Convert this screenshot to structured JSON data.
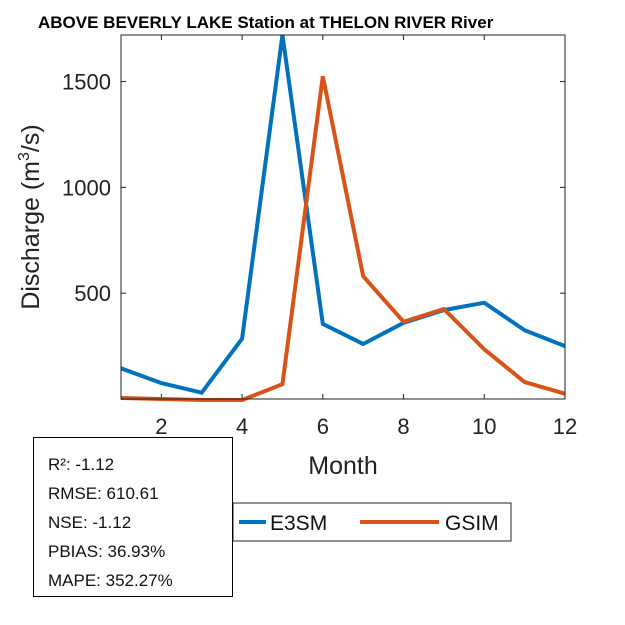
{
  "chart_data": {
    "type": "line",
    "title": "ABOVE BEVERLY LAKE  Station at  THELON RIVER  River",
    "xlabel": "Month",
    "ylabel_main": "Discharge (m",
    "ylabel_sup": "3",
    "ylabel_tail": "/s)",
    "xlim": [
      1,
      12
    ],
    "ylim": [
      0,
      1720
    ],
    "xticks": [
      2,
      4,
      6,
      8,
      10,
      12
    ],
    "yticks": [
      500,
      1000,
      1500
    ],
    "x": [
      1,
      2,
      3,
      4,
      5,
      6,
      7,
      8,
      9,
      10,
      11,
      12
    ],
    "series": [
      {
        "name": "E3SM",
        "color": "#0072BD",
        "values": [
          145,
          75,
          30,
          285,
          1720,
          355,
          260,
          360,
          420,
          455,
          325,
          250
        ]
      },
      {
        "name": "GSIM",
        "color": "#D95319",
        "values": [
          5,
          0,
          -5,
          -5,
          70,
          1525,
          580,
          365,
          425,
          235,
          80,
          25
        ]
      }
    ],
    "legend": [
      "E3SM",
      "GSIM"
    ]
  },
  "stats": {
    "r2": "R²: -1.12",
    "rmse": "RMSE: 610.61",
    "nse": "NSE: -1.12",
    "pbias": "PBIAS: 36.93%",
    "mape": "MAPE: 352.27%"
  }
}
